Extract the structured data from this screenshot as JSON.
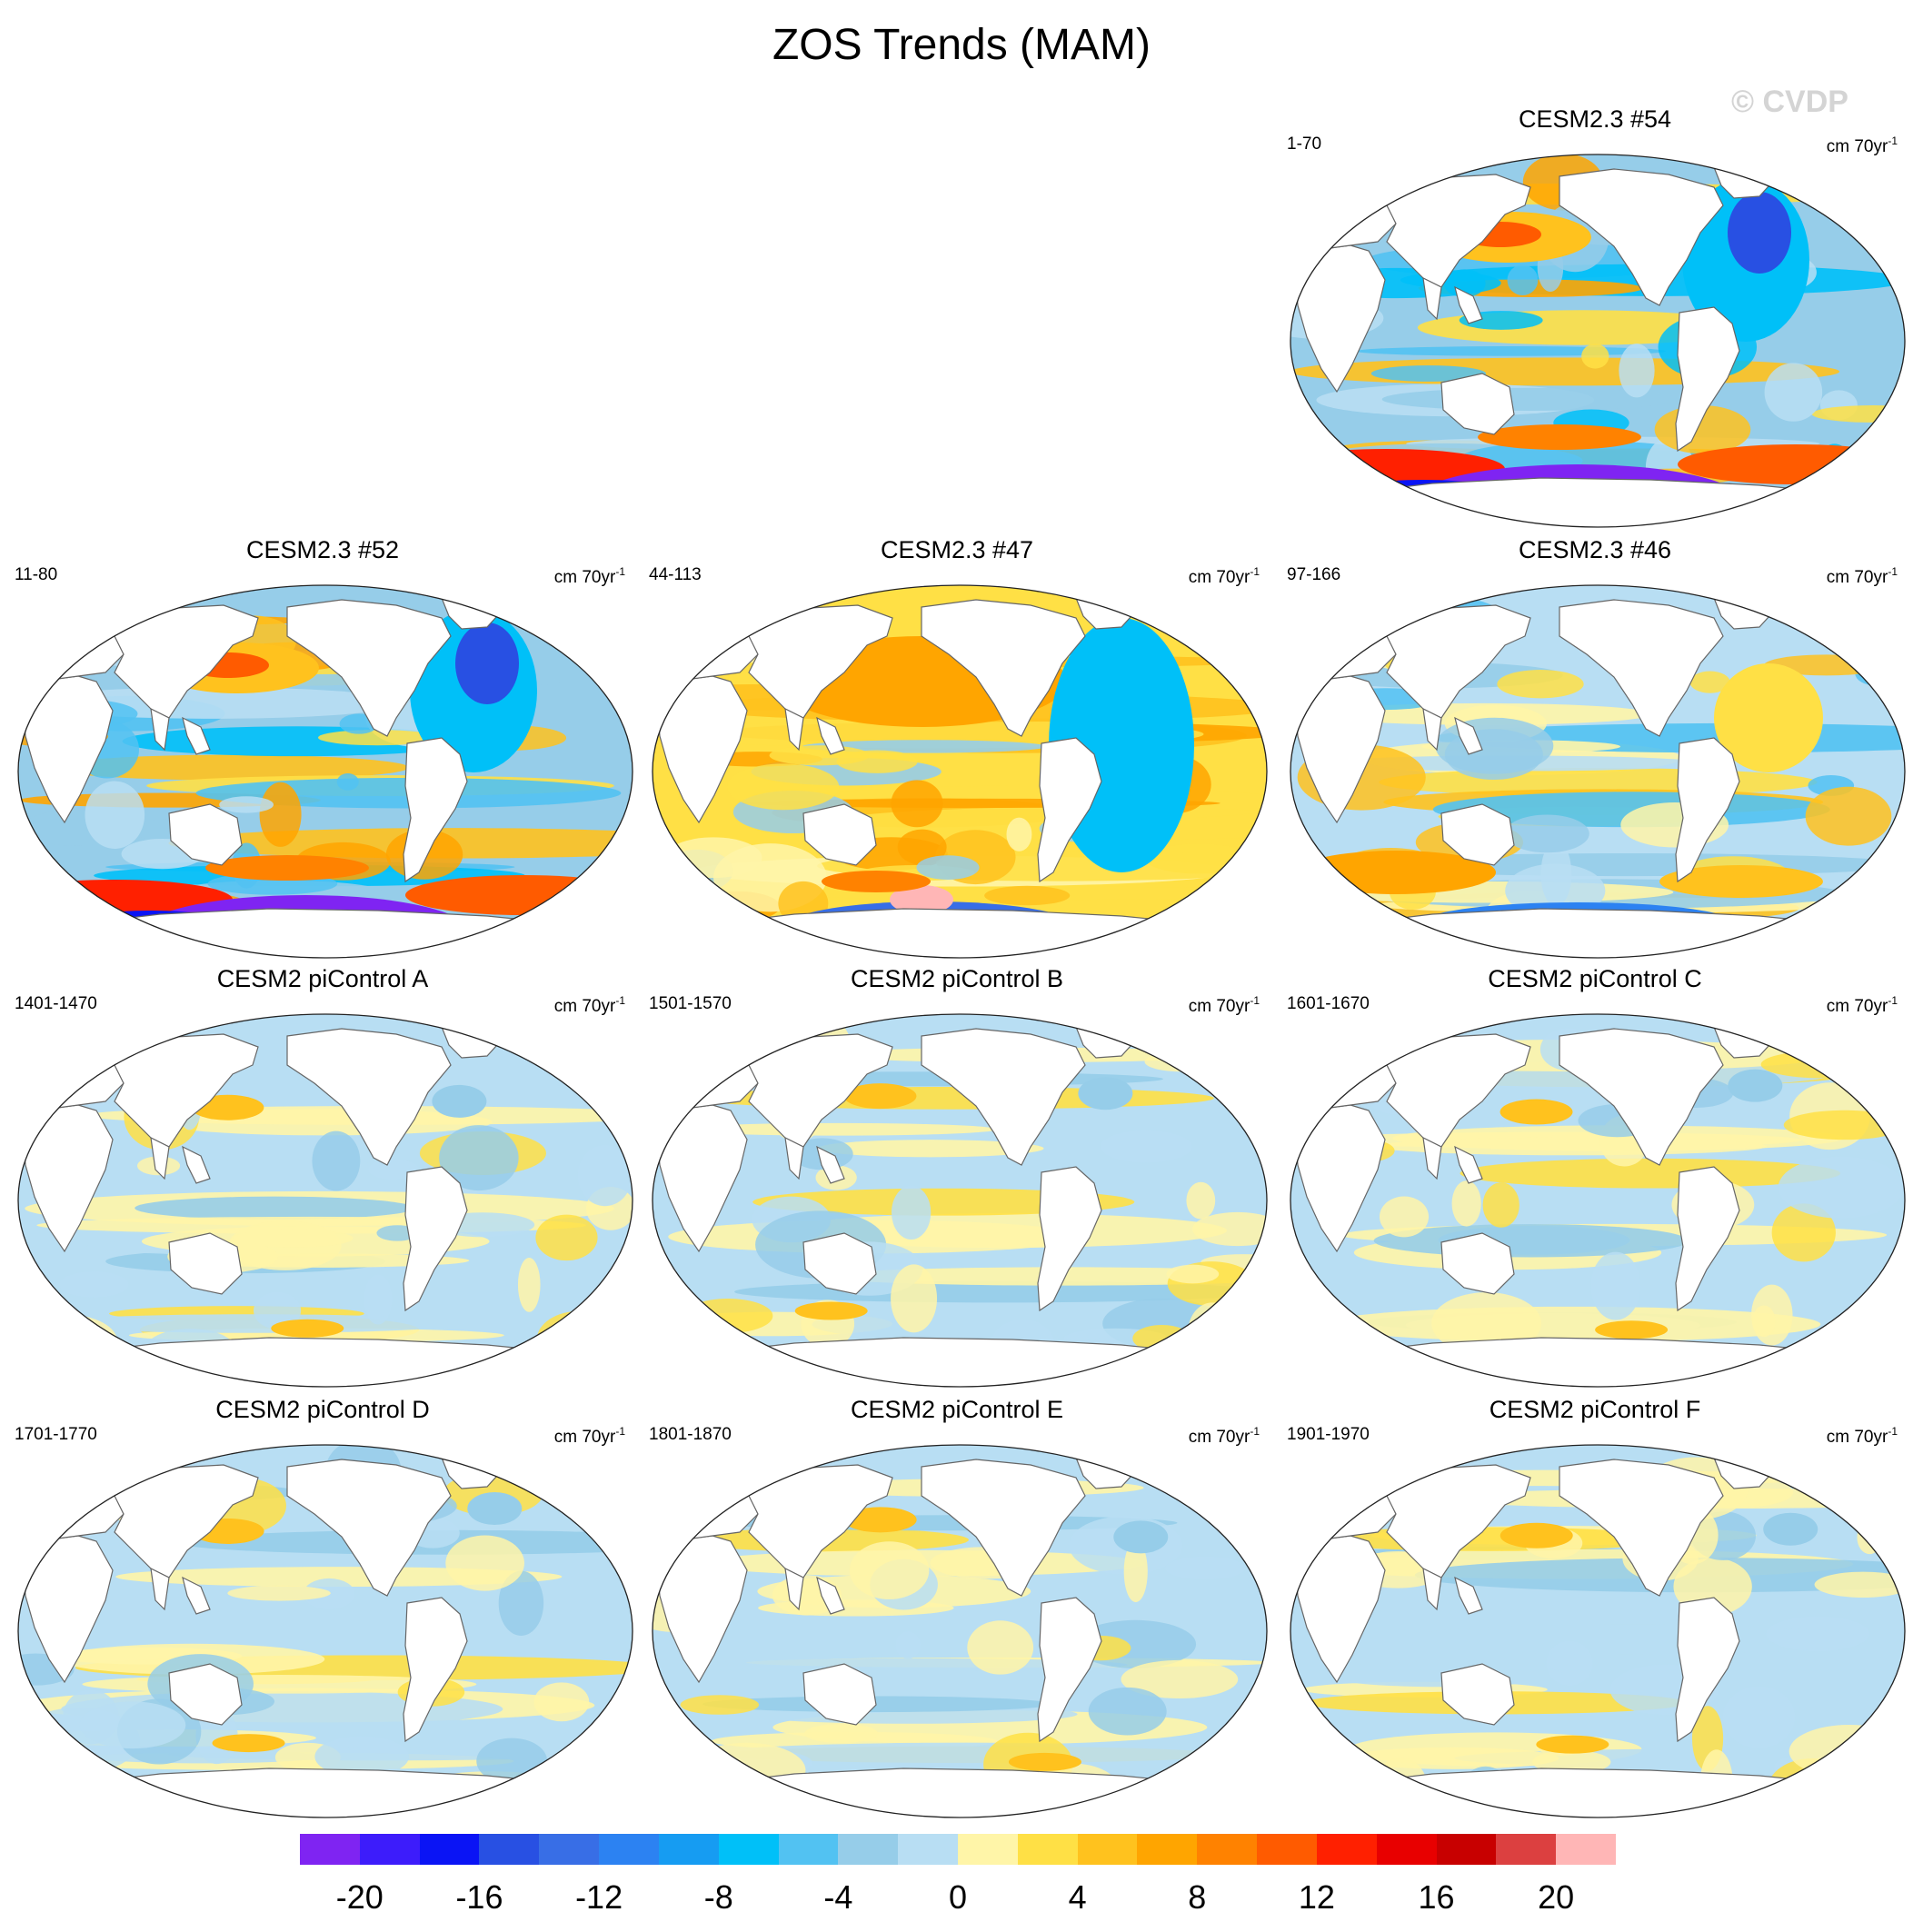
{
  "title": "ZOS Trends (MAM)",
  "watermark": "© CVDP",
  "units": "cm 70yr",
  "units_exponent": "-1",
  "panels": [
    {
      "title": "CESM2.3 #54",
      "period": "1-70",
      "style": "strong",
      "variant": 0
    },
    {
      "title": "CESM2.3 #52",
      "period": "11-80",
      "style": "strong",
      "variant": 1
    },
    {
      "title": "CESM2.3 #47",
      "period": "44-113",
      "style": "warm",
      "variant": 2
    },
    {
      "title": "CESM2.3 #46",
      "period": "97-166",
      "style": "mixed",
      "variant": 3
    },
    {
      "title": "CESM2 piControl A",
      "period": "1401-1470",
      "style": "weak",
      "variant": 4
    },
    {
      "title": "CESM2 piControl B",
      "period": "1501-1570",
      "style": "weak",
      "variant": 5
    },
    {
      "title": "CESM2 piControl C",
      "period": "1601-1670",
      "style": "weak",
      "variant": 6
    },
    {
      "title": "CESM2 piControl D",
      "period": "1701-1770",
      "style": "weak",
      "variant": 7
    },
    {
      "title": "CESM2 piControl E",
      "period": "1801-1870",
      "style": "weak",
      "variant": 8
    },
    {
      "title": "CESM2 piControl F",
      "period": "1901-1970",
      "style": "weak",
      "variant": 9
    }
  ],
  "colorbar": {
    "colors": [
      "#7f24f2",
      "#3d1cfb",
      "#0a14f5",
      "#2850e3",
      "#386ee6",
      "#2c82f2",
      "#169cf2",
      "#00c0f8",
      "#52c2f2",
      "#96cde9",
      "#b8def3",
      "#fff5a8",
      "#ffe045",
      "#ffc21e",
      "#ffa500",
      "#ff8200",
      "#ff5b00",
      "#ff2000",
      "#e80000",
      "#c80000",
      "#dc4040",
      "#ffb6b6"
    ],
    "tick_labels": [
      "-20",
      "-16",
      "-12",
      "-8",
      "-4",
      "0",
      "4",
      "8",
      "12",
      "16",
      "20"
    ]
  }
}
